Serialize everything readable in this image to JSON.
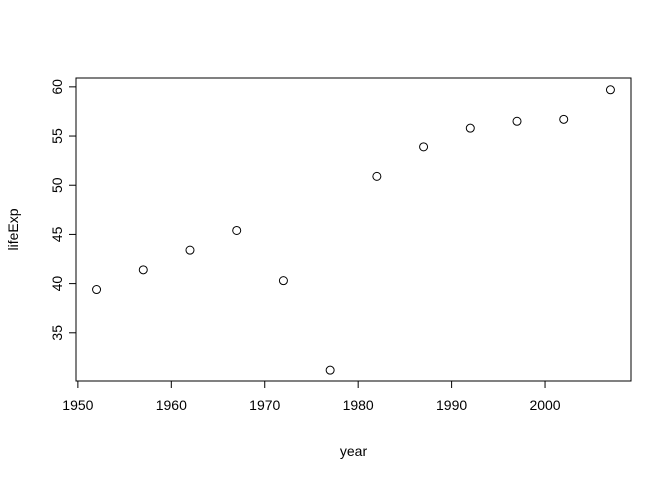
{
  "chart_data": {
    "type": "scatter",
    "x_label": "year",
    "y_label": "lifeExp",
    "x": [
      1952,
      1957,
      1962,
      1967,
      1972,
      1977,
      1982,
      1987,
      1992,
      1997,
      2002,
      2007
    ],
    "values": [
      39.4,
      41.4,
      43.4,
      45.4,
      40.3,
      31.2,
      50.9,
      53.9,
      55.8,
      56.5,
      56.7,
      59.7
    ],
    "color": "#000000",
    "xlim": [
      1949.8,
      2009.2
    ],
    "xticks": [
      1950,
      1960,
      1970,
      1980,
      1990,
      2000
    ],
    "ylim": [
      30.1,
      60.9
    ],
    "yticks": [
      35,
      40,
      45,
      50,
      55,
      60
    ]
  }
}
